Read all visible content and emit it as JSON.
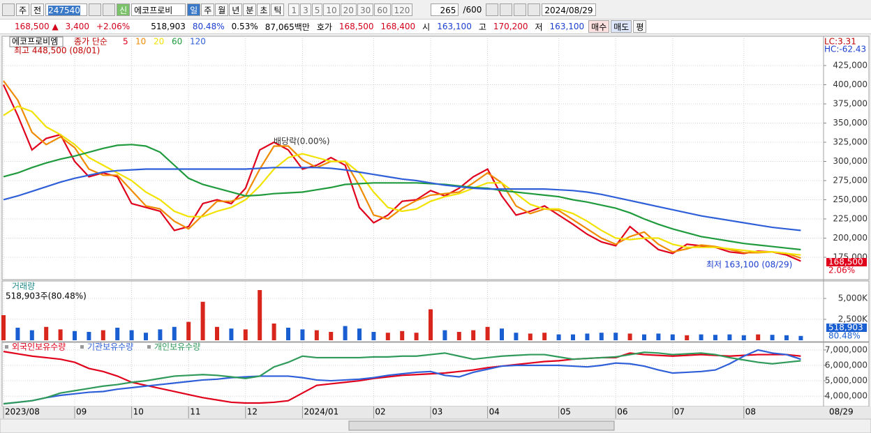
{
  "toolbar": {
    "market": "주",
    "prev": "전",
    "code": "247540",
    "credit": "신",
    "name": "에코프로비",
    "periods": [
      "일",
      "주",
      "월",
      "년",
      "분",
      "초",
      "틱"
    ],
    "intervals": [
      "1",
      "3",
      "5",
      "10",
      "20",
      "30",
      "60",
      "120"
    ],
    "count": "265",
    "max": "/600",
    "date": "2024/08/29"
  },
  "quote": {
    "price": "168,500 ▲",
    "change": "3,400",
    "rate": "+2.06%",
    "volume": "518,903",
    "volume_ratio": "80.48%",
    "turnover": "0.53%",
    "amount": "87,065백만",
    "ask_label": "호가",
    "ask": "168,500",
    "bid": "168,400",
    "open_label": "시",
    "open": "163,100",
    "high_label": "고",
    "high": "170,200",
    "low_label": "저",
    "low": "163,100",
    "buy": "매수",
    "sell": "매도",
    "avg": "평"
  },
  "chart_data": [
    {
      "type": "line",
      "title": "에코프로비엠",
      "legend_title": "종가 단순",
      "grid": true,
      "high_label": "최고 448,500 (08/01)",
      "low_label": "최저 163,100 (08/29)",
      "event_label": "배당락(0.00%)",
      "lc_label": "LC:3.31",
      "hc_label": "HC:-62.43",
      "last_price_label": "168,500",
      "last_rate_label": "2.06%",
      "ylim": [
        146800,
        463200
      ],
      "yticks": [
        {
          "value": 175000,
          "label": "175,000"
        },
        {
          "value": 200000,
          "label": "200,000"
        },
        {
          "value": 225000,
          "label": "225,000"
        },
        {
          "value": 250000,
          "label": "250,000"
        },
        {
          "value": 275000,
          "label": "275,000"
        },
        {
          "value": 300000,
          "label": "300,000"
        },
        {
          "value": 325000,
          "label": "325,000"
        },
        {
          "value": 350000,
          "label": "350,000"
        },
        {
          "value": 375000,
          "label": "375,000"
        },
        {
          "value": 400000,
          "label": "400,000"
        },
        {
          "value": 425000,
          "label": "425,000"
        }
      ],
      "series": [
        {
          "name": "5",
          "color": "#e0001b",
          "values": [
            400000,
            360000,
            315000,
            330000,
            335000,
            300000,
            280000,
            285000,
            280000,
            245000,
            240000,
            235000,
            210000,
            215000,
            245000,
            250000,
            245000,
            265000,
            315000,
            325000,
            315000,
            290000,
            295000,
            305000,
            295000,
            240000,
            220000,
            230000,
            248000,
            250000,
            262000,
            255000,
            265000,
            280000,
            290000,
            255000,
            230000,
            235000,
            242000,
            230000,
            218000,
            205000,
            195000,
            190000,
            215000,
            200000,
            185000,
            180000,
            192000,
            190000,
            188000,
            182000,
            180000,
            183000,
            182000,
            178000,
            170000
          ]
        },
        {
          "name": "10",
          "color": "#f08a00",
          "values": [
            405000,
            380000,
            338000,
            322000,
            332000,
            318000,
            290000,
            282000,
            282000,
            262000,
            242000,
            238000,
            222000,
            212000,
            230000,
            248000,
            248000,
            255000,
            290000,
            320000,
            320000,
            302000,
            292000,
            300000,
            300000,
            268000,
            230000,
            225000,
            239000,
            249000,
            256000,
            258000,
            260000,
            272000,
            285000,
            272000,
            242000,
            232000,
            238000,
            236000,
            224000,
            212000,
            200000,
            192000,
            202000,
            208000,
            192000,
            182000,
            186000,
            191000,
            189000,
            185000,
            181000,
            181000,
            182000,
            180000,
            174000
          ]
        },
        {
          "name": "20",
          "color": "#f2e200",
          "values": [
            360000,
            372000,
            365000,
            345000,
            335000,
            322000,
            305000,
            295000,
            285000,
            275000,
            260000,
            250000,
            235000,
            228000,
            228000,
            235000,
            240000,
            250000,
            268000,
            290000,
            305000,
            310000,
            305000,
            300000,
            300000,
            285000,
            260000,
            240000,
            235000,
            238000,
            248000,
            254000,
            258000,
            265000,
            272000,
            272000,
            258000,
            244000,
            238000,
            238000,
            232000,
            222000,
            210000,
            200000,
            198000,
            200000,
            200000,
            192000,
            188000,
            188000,
            188000,
            186000,
            184000,
            182000,
            182000,
            180000,
            178000
          ]
        },
        {
          "name": "60",
          "color": "#1f9a3d",
          "values": [
            280000,
            285000,
            292000,
            298000,
            303000,
            307000,
            312000,
            317000,
            321000,
            322000,
            320000,
            312000,
            295000,
            278000,
            270000,
            265000,
            260000,
            255000,
            256000,
            258000,
            259000,
            260000,
            263000,
            266000,
            270000,
            271000,
            272000,
            272000,
            272000,
            272000,
            271000,
            270000,
            268000,
            266000,
            265000,
            262000,
            260000,
            258000,
            256000,
            254000,
            250000,
            247000,
            243000,
            239000,
            233000,
            225000,
            218000,
            212000,
            207000,
            202000,
            199000,
            196000,
            193000,
            191000,
            189000,
            187000,
            185000
          ]
        },
        {
          "name": "120",
          "color": "#2f5fd8",
          "values": [
            250000,
            255000,
            261000,
            267000,
            273000,
            278000,
            282000,
            286000,
            288000,
            289000,
            290000,
            290000,
            290000,
            290000,
            290000,
            290000,
            290000,
            290000,
            291000,
            292000,
            292000,
            292000,
            292000,
            291000,
            289000,
            286000,
            283000,
            280000,
            277000,
            275000,
            272000,
            269000,
            267000,
            265000,
            264000,
            264000,
            264000,
            264000,
            264000,
            263000,
            262000,
            260000,
            257000,
            253000,
            249000,
            245000,
            241000,
            237000,
            233000,
            229000,
            226000,
            223000,
            220000,
            217000,
            214000,
            212000,
            210000
          ]
        }
      ]
    },
    {
      "type": "bar",
      "title": "거래량",
      "subtitle": "518,903주(80.48%)",
      "last_value_label": "518,903",
      "last_ratio_label": "80.48%",
      "up_color": "#d9261c",
      "down_color": "#1a5fd1",
      "ylim": [
        0,
        7000000
      ],
      "yticks": [
        {
          "value": 2500000,
          "label": "2,500K"
        },
        {
          "value": 5000000,
          "label": "5,000K"
        }
      ],
      "values": [
        3000000,
        1500000,
        1200000,
        1600000,
        1300000,
        1100000,
        1000000,
        1200000,
        1500000,
        1200000,
        900000,
        1300000,
        1600000,
        2200000,
        4600000,
        1600000,
        1400000,
        1300000,
        6000000,
        2000000,
        1500000,
        1300000,
        1200000,
        1000000,
        1700000,
        1400000,
        1000000,
        900000,
        1100000,
        900000,
        3700000,
        1200000,
        1000000,
        1200000,
        1600000,
        1400000,
        900000,
        800000,
        900000,
        700000,
        700000,
        800000,
        900000,
        900000,
        800000,
        700000,
        800000,
        700000,
        600000,
        700000,
        650000,
        700000,
        600000,
        700000,
        650000,
        600000,
        518903
      ]
    },
    {
      "type": "line",
      "x_end_label": "08/29",
      "categories": [
        "2023/08",
        null,
        null,
        null,
        null,
        "09",
        null,
        null,
        null,
        "10",
        null,
        null,
        null,
        "11",
        null,
        null,
        null,
        "12",
        null,
        null,
        null,
        "2024/01",
        null,
        null,
        null,
        null,
        "02",
        null,
        null,
        null,
        "03",
        null,
        null,
        null,
        "04",
        null,
        null,
        null,
        null,
        "05",
        null,
        null,
        null,
        "06",
        null,
        null,
        null,
        "07",
        null,
        null,
        null,
        null,
        "08",
        null,
        null,
        null,
        null
      ],
      "ylim": [
        3370000,
        7450000
      ],
      "yticks": [
        {
          "value": 4000000,
          "label": "4,000,000"
        },
        {
          "value": 5000000,
          "label": "5,000,000"
        },
        {
          "value": 6000000,
          "label": "6,000,000"
        },
        {
          "value": 7000000,
          "label": "7,000,000"
        }
      ],
      "series": [
        {
          "name": "외국인보유수량",
          "color": "#e0001b",
          "values": [
            6900000,
            6750000,
            6600000,
            6500000,
            6400000,
            6200000,
            5800000,
            5600000,
            5300000,
            4900000,
            4700000,
            4500000,
            4300000,
            4100000,
            3900000,
            3750000,
            3600000,
            3550000,
            3550000,
            3600000,
            3700000,
            4200000,
            4700000,
            4800000,
            4900000,
            5000000,
            5150000,
            5250000,
            5350000,
            5400000,
            5450000,
            5500000,
            5600000,
            5700000,
            5850000,
            5950000,
            6050000,
            6150000,
            6250000,
            6300000,
            6400000,
            6450000,
            6500000,
            6500000,
            6800000,
            6700000,
            6650000,
            6600000,
            6650000,
            6700000,
            6650000,
            6600000,
            6650000,
            6700000,
            6700000,
            6700000,
            6600000
          ]
        },
        {
          "name": "기관보유수량",
          "color": "#2f5fd8",
          "values": [
            3500000,
            3600000,
            3700000,
            3900000,
            4050000,
            4150000,
            4250000,
            4300000,
            4450000,
            4550000,
            4650000,
            4750000,
            4850000,
            4950000,
            5050000,
            5100000,
            5200000,
            5250000,
            5300000,
            5300000,
            5300000,
            5200000,
            5050000,
            5000000,
            5050000,
            5100000,
            5200000,
            5350000,
            5450000,
            5550000,
            5600000,
            5350000,
            5250000,
            5550000,
            5750000,
            5950000,
            6000000,
            6000000,
            6000000,
            6000000,
            5950000,
            5900000,
            6000000,
            6150000,
            6100000,
            5950000,
            5700000,
            5500000,
            5550000,
            5600000,
            5700000,
            6100000,
            6600000,
            7000000,
            6800000,
            6700000,
            6400000
          ]
        },
        {
          "name": "개인보유수량",
          "color": "#2f9a5a",
          "values": [
            3500000,
            3600000,
            3700000,
            3900000,
            4200000,
            4350000,
            4500000,
            4650000,
            4750000,
            4900000,
            5000000,
            5150000,
            5300000,
            5350000,
            5400000,
            5350000,
            5250000,
            5150000,
            5300000,
            5900000,
            6200000,
            6600000,
            6500000,
            6500000,
            6500000,
            6500000,
            6550000,
            6550000,
            6600000,
            6600000,
            6700000,
            6800000,
            6600000,
            6400000,
            6500000,
            6600000,
            6650000,
            6700000,
            6700000,
            6550000,
            6400000,
            6450000,
            6500000,
            6550000,
            6700000,
            6850000,
            6800000,
            6700000,
            6750000,
            6800000,
            6700000,
            6500000,
            6350000,
            6200000,
            6100000,
            6200000,
            6300000
          ]
        }
      ]
    }
  ]
}
